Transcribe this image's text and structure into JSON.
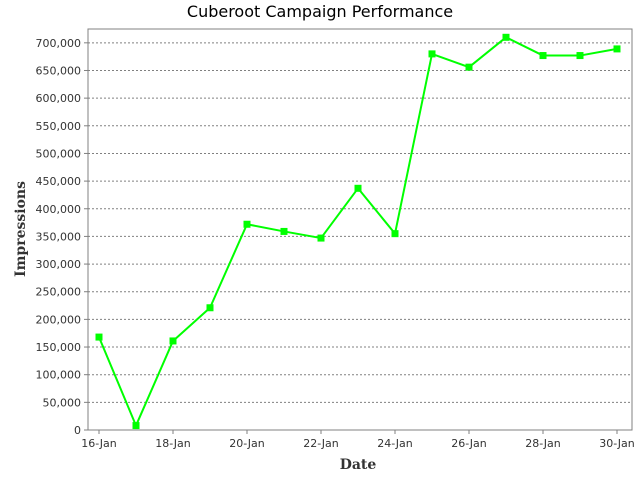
{
  "chart_data": {
    "type": "line",
    "title": "Cuberoot Campaign Performance",
    "xlabel": "Date",
    "ylabel": "Impressions",
    "x": [
      "16-Jan",
      "17-Jan",
      "18-Jan",
      "19-Jan",
      "20-Jan",
      "21-Jan",
      "22-Jan",
      "23-Jan",
      "24-Jan",
      "25-Jan",
      "26-Jan",
      "27-Jan",
      "28-Jan",
      "29-Jan",
      "30-Jan"
    ],
    "x_tick_labels": [
      "16-Jan",
      "18-Jan",
      "20-Jan",
      "22-Jan",
      "24-Jan",
      "26-Jan",
      "28-Jan",
      "30-Jan"
    ],
    "series": [
      {
        "values": [
          168000,
          8000,
          161000,
          221000,
          372000,
          359000,
          347000,
          437000,
          355000,
          680000,
          656000,
          710000,
          677000,
          677000,
          689000
        ],
        "color": "#00ff00"
      }
    ],
    "ylim": [
      0,
      725000
    ],
    "y_ticks": [
      0,
      50000,
      100000,
      150000,
      200000,
      250000,
      300000,
      350000,
      400000,
      450000,
      500000,
      550000,
      600000,
      650000,
      700000
    ],
    "grid": true,
    "legend": "none"
  }
}
